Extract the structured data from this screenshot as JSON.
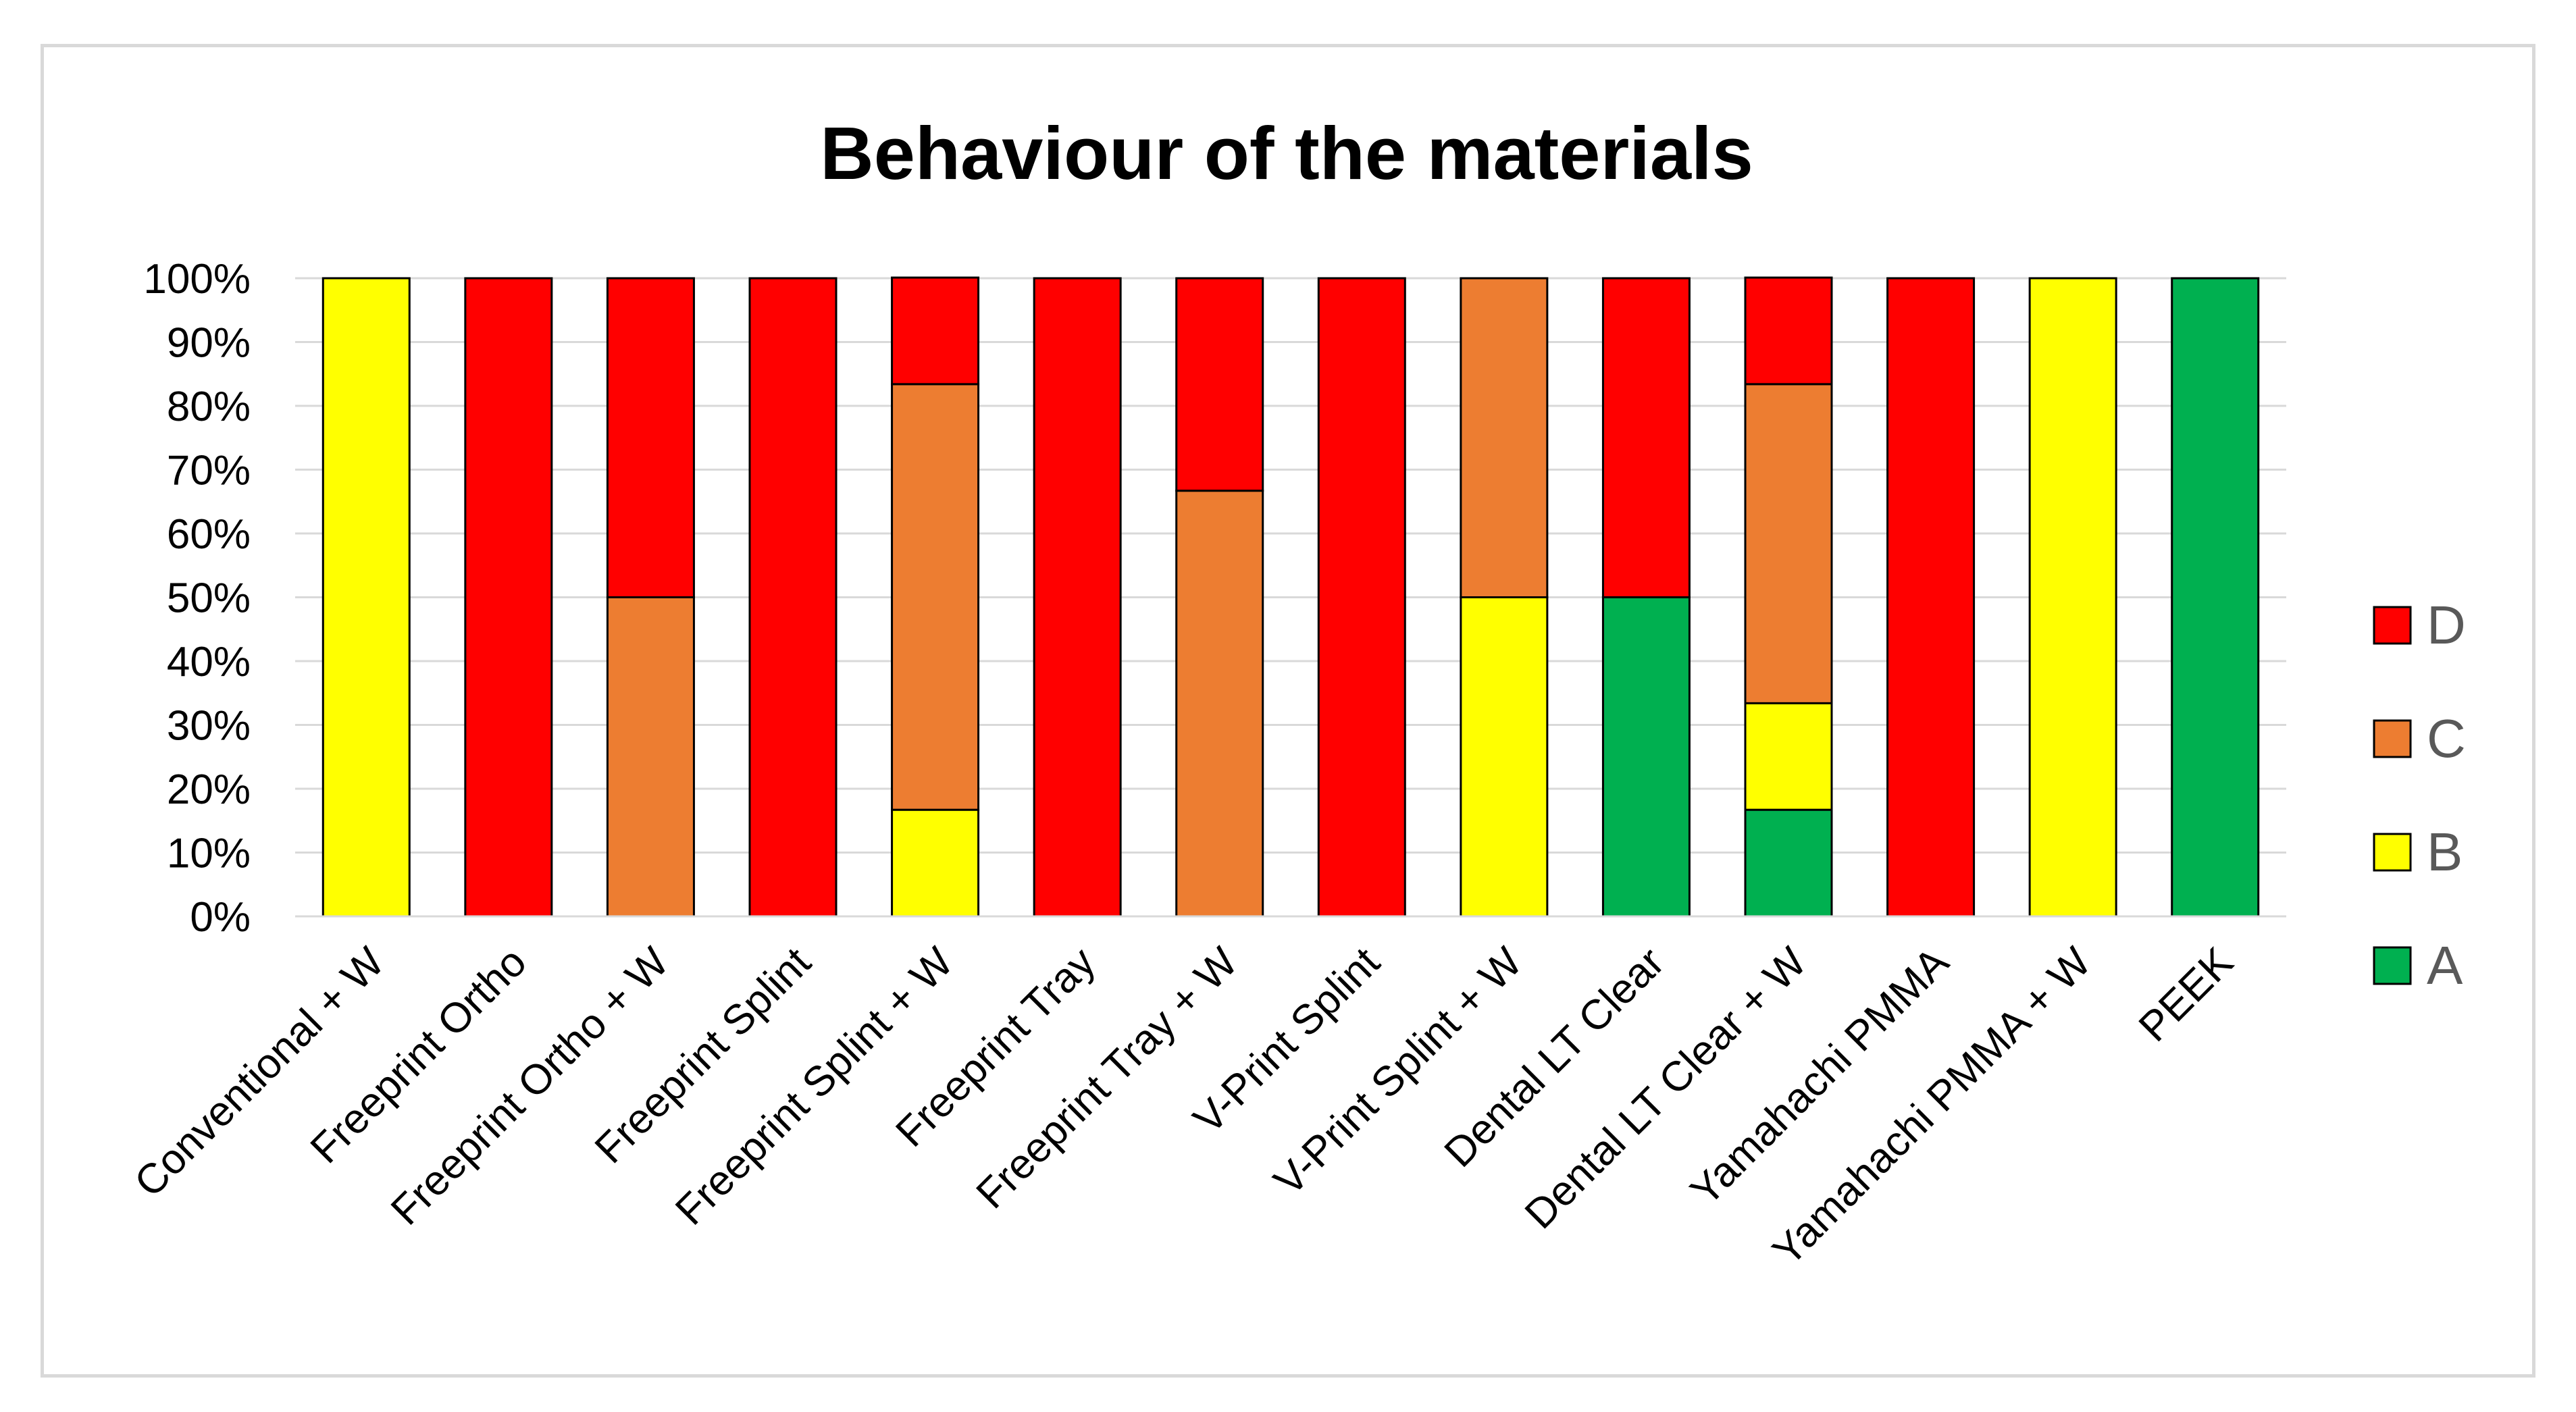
{
  "chart_data": {
    "type": "bar",
    "stacked": true,
    "percent": true,
    "title": "Behaviour of the materials",
    "xlabel": "",
    "ylabel": "",
    "ylim": [
      0,
      100
    ],
    "yticks": [
      0,
      10,
      20,
      30,
      40,
      50,
      60,
      70,
      80,
      90,
      100
    ],
    "ytick_suffix": "%",
    "grid": true,
    "legend_position": "right",
    "categories": [
      "Conventional + W",
      "Freeprint Ortho",
      "Freeprint Ortho + W",
      "Freeprint Splint",
      "Freeprint Splint + W",
      "Freeprint Tray",
      "Freeprint Tray + W",
      "V-Print Splint",
      "V-Print Splint + W",
      "Dental LT Clear",
      "Dental LT Clear + W",
      "Yamahachi PMMA",
      "Yamahachi PMMA + W",
      "PEEK"
    ],
    "series": [
      {
        "name": "A",
        "color": "#00b050",
        "values": [
          0,
          0,
          0,
          0,
          0,
          0,
          0,
          0,
          0,
          50,
          16.7,
          0,
          0,
          100
        ]
      },
      {
        "name": "B",
        "color": "#ffff00",
        "values": [
          100,
          0,
          0,
          0,
          16.7,
          0,
          0,
          0,
          50,
          0,
          16.7,
          0,
          100,
          0
        ]
      },
      {
        "name": "C",
        "color": "#ed7d31",
        "values": [
          0,
          0,
          50,
          0,
          66.7,
          0,
          66.7,
          0,
          50,
          0,
          50,
          0,
          0,
          0
        ]
      },
      {
        "name": "D",
        "color": "#ff0000",
        "values": [
          0,
          100,
          50,
          100,
          16.7,
          100,
          33.3,
          100,
          0,
          50,
          16.7,
          100,
          0,
          0
        ]
      }
    ]
  }
}
